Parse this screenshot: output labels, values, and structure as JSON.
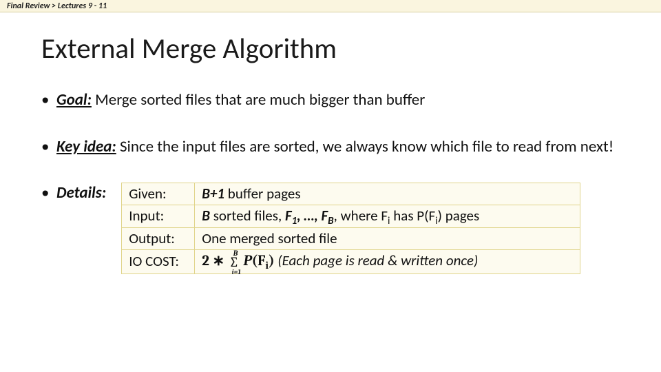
{
  "breadcrumb": "Final Review > Lectures 9 - 11",
  "title": "External Merge Algorithm",
  "bullet_goal_label": "Goal:",
  "bullet_goal_text": " Merge sorted files that are much bigger than buffer",
  "bullet_key_label": "Key idea:",
  "bullet_key_text": " Since the input files are sorted, we always know which file to read from next!",
  "bullet_details_label": "Details:",
  "table": {
    "rows": [
      {
        "k": "Given:",
        "v_pre": "",
        "v_b1": "B+1",
        "v_post": " buffer pages"
      },
      {
        "k": "Input:",
        "v_pre": "",
        "v_b1": "B",
        "v_mid": " sorted files, ",
        "v_b2": "F",
        "v_sub1": "1",
        "v_comma": ", …, F",
        "v_sub2": "B",
        "v_tail1": ", where F",
        "v_sub3": "i",
        "v_tail2": " has P(F",
        "v_sub4": "i",
        "v_tail3": ") pages"
      },
      {
        "k": "Output:",
        "v_plain": "One merged sorted file"
      },
      {
        "k": "IO COST:",
        "v_math_lead": "2 ∗ ",
        "v_sig_top": "B",
        "v_sig_bot": "i=1",
        "v_math_fn": "P",
        "v_math_arg1": "(F",
        "v_math_sub": "i",
        "v_math_arg2": ")",
        "v_note": "  (Each page is read & written once)"
      }
    ]
  },
  "colors": {
    "breadcrumb_bg": "#faf5df",
    "table_border": "#e0d48a",
    "table_bg": "#fdfbef"
  }
}
